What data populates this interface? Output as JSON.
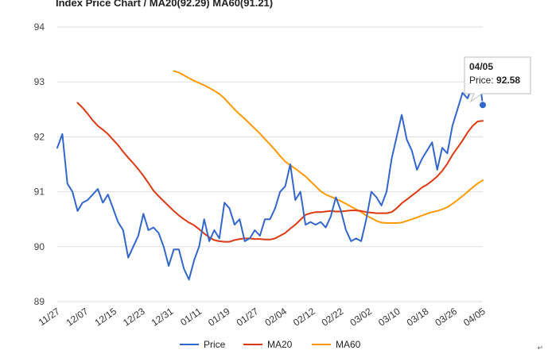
{
  "chart_data": {
    "type": "line",
    "title": "Index Price Chart / MA20(92.29) MA60(91.21)",
    "ylim": [
      89,
      94
    ],
    "yticks": [
      "89",
      "90",
      "91",
      "92",
      "93",
      "94"
    ],
    "xticks": [
      "11/27",
      "12/07",
      "12/15",
      "12/23",
      "12/31",
      "01/11",
      "01/19",
      "01/27",
      "02/04",
      "02/12",
      "02/22",
      "03/02",
      "03/10",
      "03/18",
      "03/26",
      "04/05"
    ],
    "grid": true,
    "legend_position": "bottom",
    "num_points": 85,
    "series": [
      {
        "name": "Price",
        "color": "#3366cc",
        "values": [
          91.8,
          92.05,
          91.15,
          91.0,
          90.65,
          90.8,
          90.85,
          90.95,
          91.05,
          90.8,
          90.95,
          90.7,
          90.45,
          90.3,
          89.8,
          90.0,
          90.2,
          90.6,
          90.3,
          90.35,
          90.25,
          90.0,
          89.65,
          89.95,
          89.95,
          89.6,
          89.4,
          89.75,
          90.0,
          90.5,
          90.1,
          90.3,
          90.15,
          90.8,
          90.7,
          90.4,
          90.5,
          90.1,
          90.15,
          90.3,
          90.2,
          90.5,
          90.5,
          90.7,
          91.0,
          91.1,
          91.5,
          90.85,
          91.0,
          90.4,
          90.45,
          90.4,
          90.45,
          90.35,
          90.55,
          90.9,
          90.65,
          90.3,
          90.1,
          90.15,
          90.1,
          90.5,
          91.0,
          90.9,
          90.75,
          91.0,
          91.6,
          92.0,
          92.4,
          91.95,
          91.75,
          91.4,
          91.6,
          91.75,
          91.9,
          91.4,
          91.8,
          91.7,
          92.2,
          92.5,
          92.8,
          92.7,
          92.95,
          93.3,
          92.58
        ]
      },
      {
        "name": "MA20",
        "color": "#dc3912",
        "values": [
          92.62,
          92.53,
          92.42,
          92.3,
          92.2,
          92.13,
          92.05,
          91.95,
          91.85,
          91.73,
          91.62,
          91.52,
          91.41,
          91.29,
          91.16,
          91.02,
          90.92,
          90.83,
          90.74,
          90.65,
          90.57,
          90.5,
          90.44,
          90.39,
          90.32,
          90.24,
          90.17,
          90.12,
          90.1,
          90.09,
          90.09,
          90.12,
          90.14,
          90.15,
          90.15,
          90.14,
          90.14,
          90.13,
          90.13,
          90.15,
          90.2,
          90.25,
          90.33,
          90.4,
          90.49,
          90.58,
          90.61,
          90.63,
          90.63,
          90.64,
          90.65,
          90.64,
          90.64,
          90.65,
          90.66,
          90.66,
          90.65,
          90.63,
          90.62,
          90.61,
          90.61,
          90.61,
          90.63,
          90.7,
          90.79,
          90.86,
          90.93,
          91.0,
          91.08,
          91.13,
          91.2,
          91.28,
          91.38,
          91.51,
          91.67,
          91.8,
          91.93,
          92.08,
          92.2,
          92.28,
          92.29
        ]
      },
      {
        "name": "MA60",
        "color": "#ff9900",
        "values": [
          93.2,
          93.17,
          93.12,
          93.07,
          93.02,
          92.98,
          92.94,
          92.89,
          92.84,
          92.78,
          92.7,
          92.6,
          92.5,
          92.41,
          92.33,
          92.24,
          92.15,
          92.06,
          91.96,
          91.86,
          91.76,
          91.65,
          91.55,
          91.48,
          91.42,
          91.35,
          91.28,
          91.19,
          91.1,
          91.01,
          90.95,
          90.91,
          90.87,
          90.83,
          90.78,
          90.73,
          90.68,
          90.63,
          90.57,
          90.52,
          90.47,
          90.44,
          90.43,
          90.43,
          90.43,
          90.44,
          90.47,
          90.5,
          90.53,
          90.57,
          90.6,
          90.63,
          90.65,
          90.68,
          90.72,
          90.78,
          90.85,
          90.92,
          91.0,
          91.08,
          91.15,
          91.21
        ]
      }
    ],
    "tooltip": {
      "date": "04/05",
      "label": "Price: ",
      "value": "92.58"
    }
  },
  "corner_mark": "↵"
}
